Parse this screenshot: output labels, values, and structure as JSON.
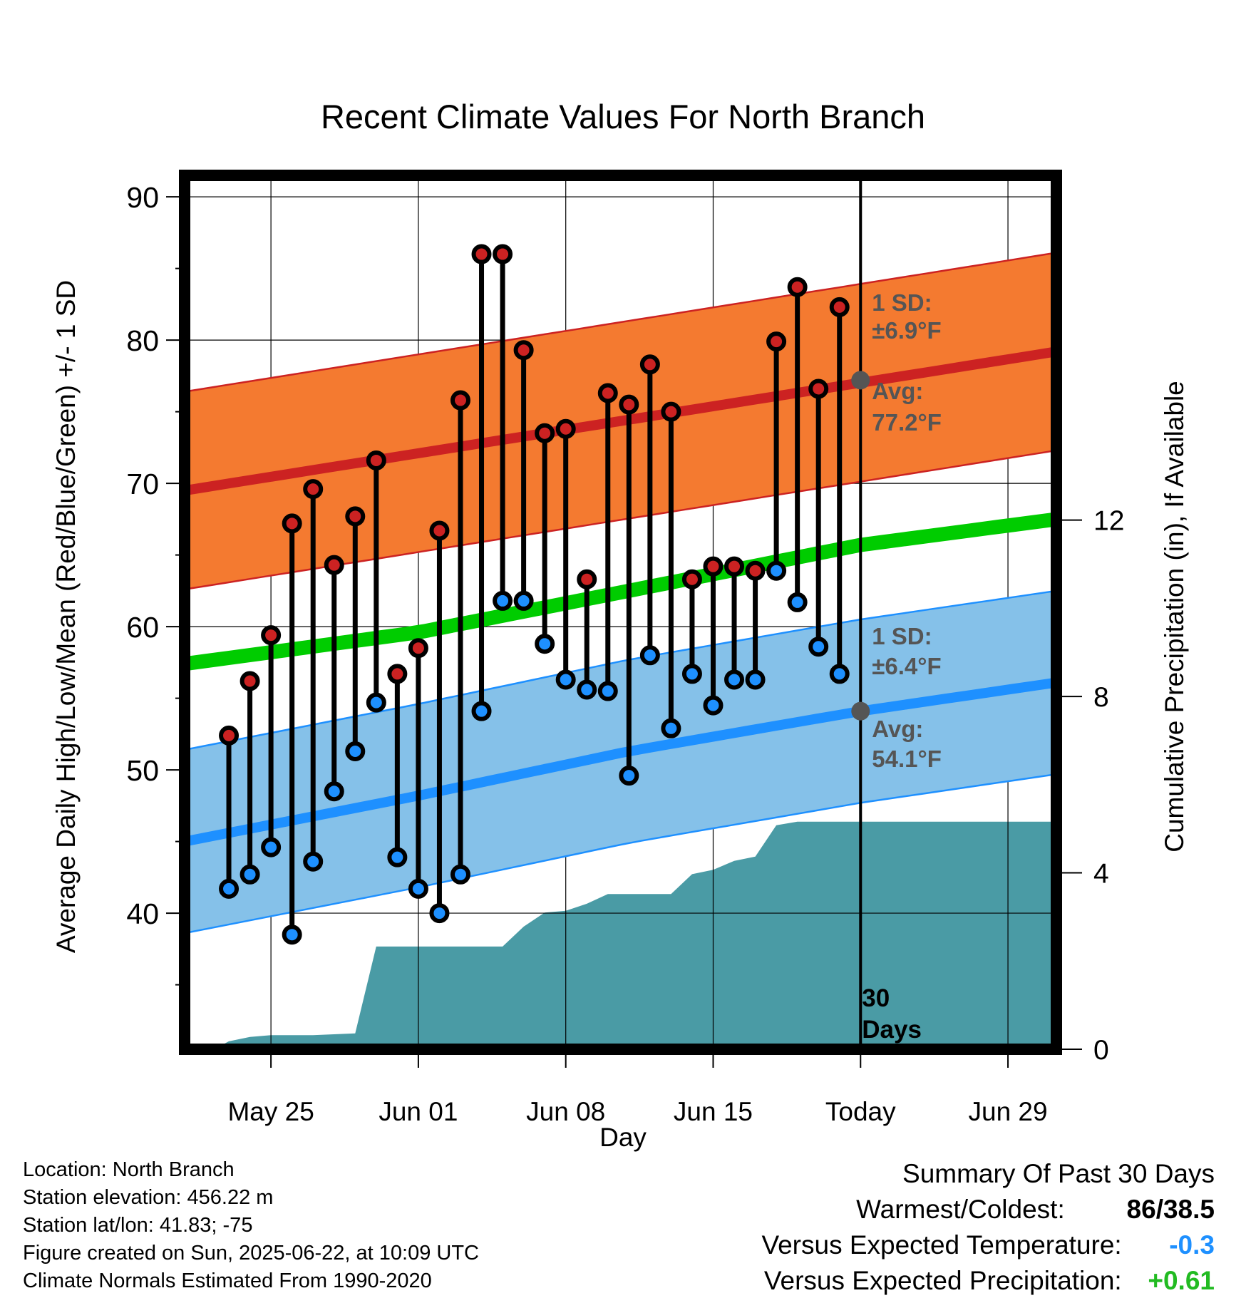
{
  "chart_data": {
    "type": "line",
    "title": "Recent Climate Values For North Branch",
    "xlabel": "Day",
    "ylabel": "Average Daily High/Low/Mean (Red/Blue/Green) +/- 1 SD",
    "y2label": "Cumulative Precipitation (in), If Available",
    "ylim": [
      30.5,
      91.5
    ],
    "y2lim": [
      0,
      19.43
    ],
    "xlim": [
      -1.1,
      40.3
    ],
    "yticks": [
      40,
      50,
      60,
      70,
      80,
      90
    ],
    "y2ticks": [
      0,
      4,
      8,
      12
    ],
    "xticks": [
      {
        "day": 3,
        "label": "May 25"
      },
      {
        "day": 10,
        "label": "Jun 01"
      },
      {
        "day": 17,
        "label": "Jun 08"
      },
      {
        "day": 24,
        "label": "Jun 15"
      },
      {
        "day": 31,
        "label": "Today"
      },
      {
        "day": 38,
        "label": "Jun 29"
      }
    ],
    "today_day": 31,
    "today_label": "30 Days",
    "grid": true,
    "normals": {
      "high_avg": [
        [
          -1.1,
          69.5
        ],
        [
          40.3,
          79.2
        ]
      ],
      "high_sd": 6.9,
      "low_avg": [
        [
          -1.1,
          45.0
        ],
        [
          10,
          48.2
        ],
        [
          20,
          51.3
        ],
        [
          31,
          54.1
        ],
        [
          40.3,
          56.1
        ]
      ],
      "low_sd": 6.4,
      "mean_avg": [
        [
          -1.1,
          57.4
        ],
        [
          10,
          59.6
        ],
        [
          20,
          62.5
        ],
        [
          31,
          65.7
        ],
        [
          40.3,
          67.5
        ]
      ]
    },
    "series": [
      {
        "name": "High",
        "color": "#cc2222",
        "x": [
          1,
          2,
          3,
          4,
          5,
          6,
          7,
          8,
          9,
          10,
          11,
          12,
          13,
          14,
          15,
          16,
          17,
          18,
          19,
          20,
          21,
          22,
          23,
          24,
          25,
          26,
          27,
          28,
          29,
          30
        ],
        "values": [
          52.4,
          56.2,
          59.4,
          67.2,
          69.6,
          64.3,
          67.7,
          71.6,
          56.7,
          58.5,
          66.7,
          75.8,
          86,
          86,
          79.3,
          73.5,
          73.8,
          63.3,
          76.3,
          75.5,
          78.3,
          75,
          63.3,
          64.2,
          64.2,
          63.9,
          79.9,
          83.7,
          76.6,
          82.3
        ]
      },
      {
        "name": "Low",
        "color": "#1e90ff",
        "x": [
          1,
          2,
          3,
          4,
          5,
          6,
          7,
          8,
          9,
          10,
          11,
          12,
          13,
          14,
          15,
          16,
          17,
          18,
          19,
          20,
          21,
          22,
          23,
          24,
          25,
          26,
          27,
          28,
          29,
          30
        ],
        "values": [
          41.7,
          42.7,
          44.6,
          38.5,
          43.6,
          48.5,
          51.3,
          54.7,
          43.9,
          41.7,
          40,
          42.7,
          54.1,
          61.8,
          61.8,
          58.8,
          56.3,
          55.6,
          55.5,
          49.6,
          58,
          52.9,
          56.7,
          54.5,
          56.3,
          56.3,
          63.9,
          61.7,
          58.6,
          56.7
        ]
      }
    ],
    "precipitation": {
      "name": "Cumulative Precipitation",
      "color": "#4a9ba5",
      "x": [
        0.3,
        1,
        2,
        3,
        4,
        5,
        6,
        7,
        8,
        9,
        10,
        11,
        12,
        13,
        14,
        15,
        16,
        17,
        18,
        19,
        20,
        21,
        22,
        23,
        24,
        25,
        26,
        27,
        28,
        29,
        30,
        31,
        40.3
      ],
      "values": [
        0,
        0.18,
        0.28,
        0.32,
        0.32,
        0.32,
        0.34,
        0.36,
        2.33,
        2.33,
        2.33,
        2.33,
        2.33,
        2.33,
        2.33,
        2.78,
        3.1,
        3.14,
        3.3,
        3.52,
        3.52,
        3.52,
        3.52,
        3.97,
        4.07,
        4.27,
        4.37,
        5.08,
        5.16,
        5.16,
        5.16,
        5.16,
        5.16
      ]
    },
    "annotations": [
      {
        "text": "1 SD:",
        "sub": "±6.9°F"
      },
      {
        "text": "Avg:",
        "sub": "77.2°F",
        "marker_y": 77.2
      },
      {
        "text": "1 SD:",
        "sub": "±6.4°F"
      },
      {
        "text": "Avg:",
        "sub": "54.1°F",
        "marker_y": 54.1
      }
    ]
  },
  "info": [
    "Location: North Branch",
    "Station elevation: 456.22 m",
    "Station lat/lon: 41.83; -75",
    "Figure created on Sun, 2025-06-22, at 10:09 UTC",
    "Climate Normals Estimated From 1990-2020"
  ],
  "summary": {
    "title": "Summary Of Past 30 Days",
    "warmest_label": "Warmest/Coldest:",
    "warmest_value": "86/38.5",
    "temp_label": "Versus Expected Temperature:",
    "temp_value": "-0.3",
    "temp_color": "#1e90ff",
    "precip_label": "Versus Expected Precipitation:",
    "precip_value": "+0.61",
    "precip_color": "#22bb22"
  },
  "colors": {
    "high_band": "#f47a30",
    "high_line": "#cc2222",
    "low_band": "#85c1e9",
    "low_line": "#1e90ff",
    "mean_line": "#00cc00",
    "precip": "#4a9ba5",
    "annotation": "#555555"
  }
}
